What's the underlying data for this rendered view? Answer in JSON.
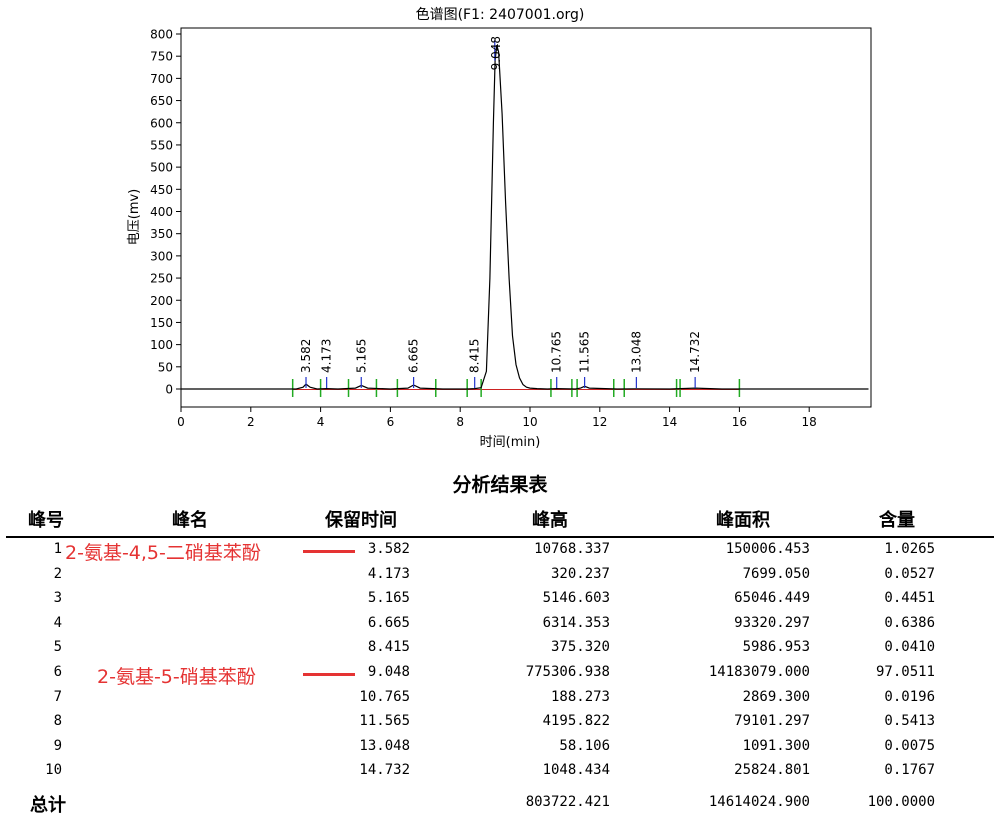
{
  "chart_data": {
    "type": "line",
    "title": "色谱图(F1: 2407001.org)",
    "xlabel": "时间(min)",
    "ylabel": "电压(mv)",
    "xlim": [
      0,
      20
    ],
    "ylim": [
      -40,
      810
    ],
    "x_ticks": [
      0,
      2,
      4,
      6,
      8,
      10,
      12,
      14,
      16,
      18
    ],
    "y_ticks": [
      0,
      50,
      100,
      150,
      200,
      250,
      300,
      350,
      400,
      450,
      500,
      550,
      600,
      650,
      700,
      750,
      800
    ],
    "grid": false,
    "series": [
      {
        "x": [
          0,
          3.3,
          3.5,
          3.582,
          3.7,
          3.9,
          4.173,
          4.5,
          5.0,
          5.165,
          5.35,
          6.0,
          6.5,
          6.665,
          6.85,
          7.5,
          8.2,
          8.415,
          8.6,
          8.75,
          8.85,
          8.95,
          9.0,
          9.048,
          9.1,
          9.2,
          9.3,
          9.4,
          9.5,
          9.6,
          9.7,
          9.8,
          9.9,
          10.0,
          10.2,
          10.5,
          10.765,
          11.3,
          11.45,
          11.565,
          11.7,
          12.5,
          13.048,
          14.0,
          14.732,
          15.5,
          16.0,
          19.7
        ],
        "y": [
          0,
          0,
          4,
          11,
          4,
          0,
          1,
          0,
          2,
          8,
          2,
          0,
          2,
          9,
          2,
          0,
          0,
          1,
          3,
          40,
          250,
          600,
          740,
          775,
          760,
          620,
          420,
          250,
          120,
          55,
          25,
          10,
          4,
          2,
          1,
          0,
          1,
          0,
          2,
          6,
          2,
          0,
          0.5,
          0,
          2,
          0,
          0,
          0
        ]
      }
    ],
    "peak_labels": [
      "3.582",
      "4.173",
      "5.165",
      "6.665",
      "8.415",
      "9.048",
      "10.765",
      "11.565",
      "13.048",
      "14.732"
    ],
    "peak_x": [
      3.582,
      4.173,
      5.165,
      6.665,
      8.415,
      9.048,
      10.765,
      11.565,
      13.048,
      14.732
    ],
    "baseline_marks": [
      3.2,
      4.0,
      4.8,
      5.6,
      6.2,
      7.3,
      8.2,
      8.6,
      10.6,
      11.2,
      11.35,
      12.4,
      12.7,
      14.2,
      14.3,
      16.0
    ]
  },
  "table": {
    "title": "分析结果表",
    "headers": [
      "峰号",
      "峰名",
      "保留时间",
      "峰高",
      "峰面积",
      "含量"
    ],
    "rows": [
      [
        "1",
        "3.582",
        "10768.337",
        "150006.453",
        "1.0265"
      ],
      [
        "2",
        "4.173",
        "320.237",
        "7699.050",
        "0.0527"
      ],
      [
        "3",
        "5.165",
        "5146.603",
        "65046.449",
        "0.4451"
      ],
      [
        "4",
        "6.665",
        "6314.353",
        "93320.297",
        "0.6386"
      ],
      [
        "5",
        "8.415",
        "375.320",
        "5986.953",
        "0.0410"
      ],
      [
        "6",
        "9.048",
        "775306.938",
        "14183079.000",
        "97.0511"
      ],
      [
        "7",
        "10.765",
        "188.273",
        "2869.300",
        "0.0196"
      ],
      [
        "8",
        "11.565",
        "4195.822",
        "79101.297",
        "0.5413"
      ],
      [
        "9",
        "13.048",
        "58.106",
        "1091.300",
        "0.0075"
      ],
      [
        "10",
        "14.732",
        "1048.434",
        "25824.801",
        "0.1767"
      ]
    ],
    "total_label": "总计",
    "totals": [
      "803722.421",
      "14614024.900",
      "100.0000"
    ]
  },
  "annotations": [
    "2-氨基-4,5-二硝基苯酚",
    "2-氨基-5-硝基苯酚"
  ],
  "colors": {
    "trace": "#000000",
    "peak_tick": "#2233cc",
    "baseline_mark": "#22aa22",
    "baseline_segment": "#cc2222",
    "annotation": "#e53333"
  }
}
